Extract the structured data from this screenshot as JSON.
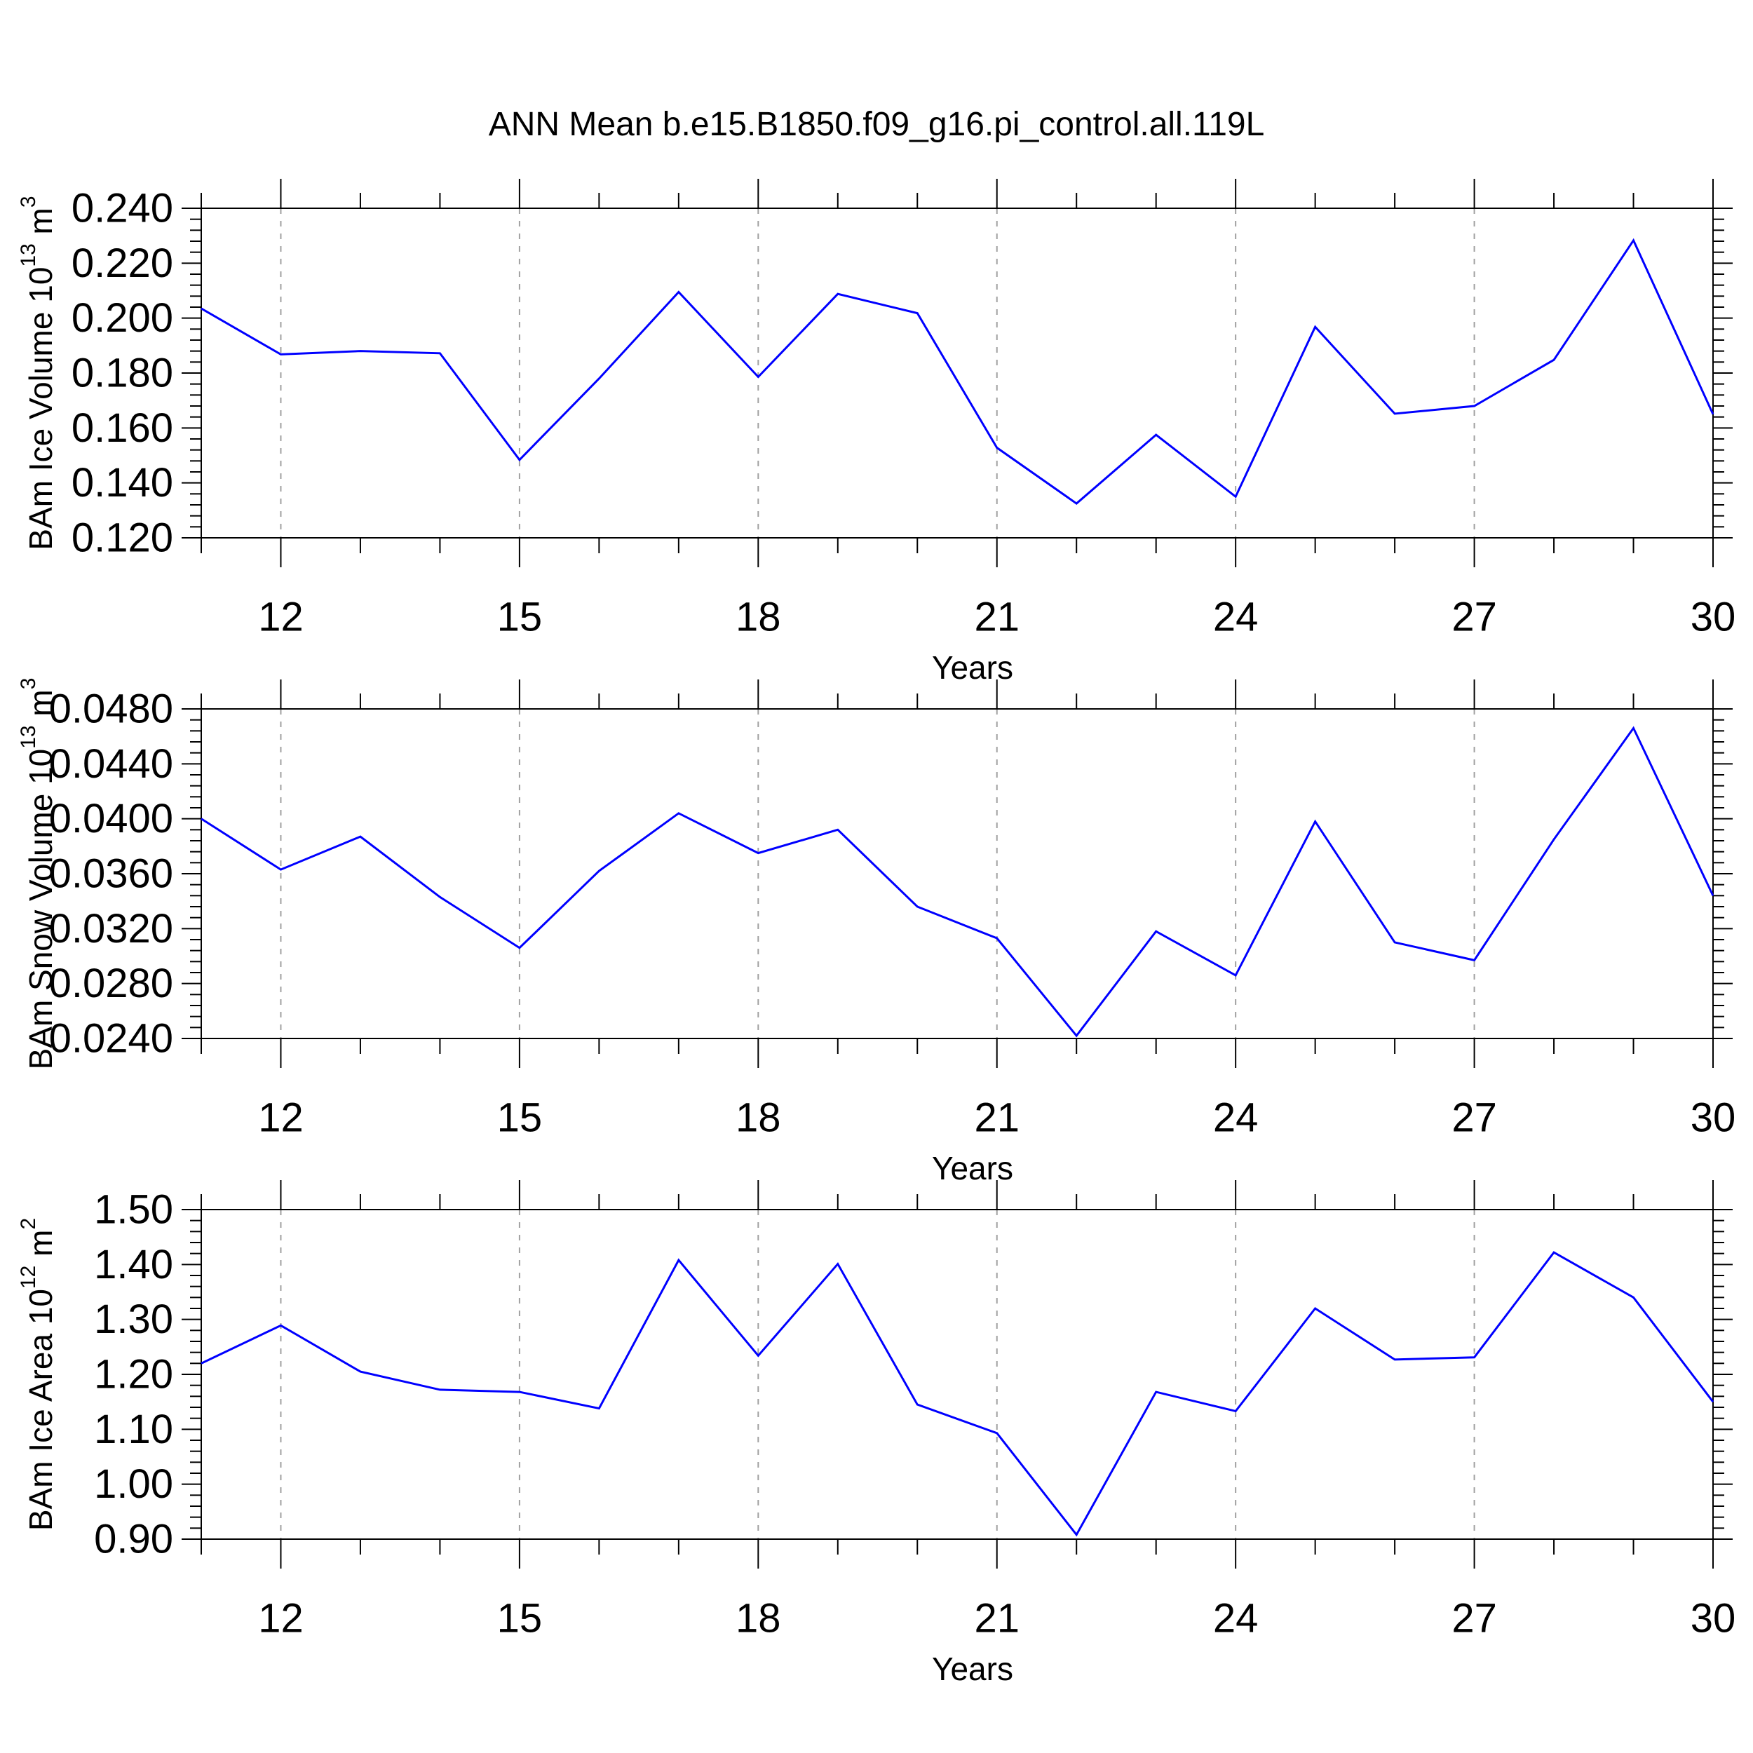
{
  "title": "ANN Mean b.e15.B1850.f09_g16.pi_control.all.119L",
  "colors": {
    "line": "#0000ff",
    "axis": "#000000",
    "grid": "#a0a0a0"
  },
  "chart_data": [
    {
      "type": "line",
      "xlabel": "Years",
      "ylabel": "BAm Ice Volume 10",
      "ylabel_exp": "13",
      "ylabel_unit": " m",
      "ylabel_unit_exp": "3",
      "xlim": [
        11,
        30
      ],
      "ylim": [
        0.12,
        0.24
      ],
      "x_ticks": [
        12,
        15,
        18,
        21,
        24,
        27,
        30
      ],
      "y_ticks": [
        "0.120",
        "0.140",
        "0.160",
        "0.180",
        "0.200",
        "0.220",
        "0.240"
      ],
      "y_tick_values": [
        0.12,
        0.14,
        0.16,
        0.18,
        0.2,
        0.22,
        0.24
      ],
      "grid": "vertical dashed at major x ticks",
      "x": [
        11,
        12,
        13,
        14,
        15,
        16,
        17,
        18,
        19,
        20,
        21,
        22,
        23,
        24,
        25,
        26,
        27,
        28,
        29,
        30
      ],
      "series": [
        {
          "values": [
            0.2035,
            0.1868,
            0.188,
            0.1872,
            0.1484,
            0.178,
            0.2095,
            0.1786,
            0.2088,
            0.2018,
            0.1528,
            0.1325,
            0.1575,
            0.135,
            0.1968,
            0.1652,
            0.168,
            0.1848,
            0.2283,
            0.165
          ]
        }
      ]
    },
    {
      "type": "line",
      "xlabel": "Years",
      "ylabel": "BAm Snow Volume 10",
      "ylabel_exp": "13",
      "ylabel_unit": " m",
      "ylabel_unit_exp": "3",
      "xlim": [
        11,
        30
      ],
      "ylim": [
        0.024,
        0.048
      ],
      "x_ticks": [
        12,
        15,
        18,
        21,
        24,
        27,
        30
      ],
      "y_ticks": [
        "0.0240",
        "0.0280",
        "0.0320",
        "0.0360",
        "0.0400",
        "0.0440",
        "0.0480"
      ],
      "y_tick_values": [
        0.024,
        0.028,
        0.032,
        0.036,
        0.04,
        0.044,
        0.048
      ],
      "grid": "vertical dashed at major x ticks",
      "x": [
        11,
        12,
        13,
        14,
        15,
        16,
        17,
        18,
        19,
        20,
        21,
        22,
        23,
        24,
        25,
        26,
        27,
        28,
        29,
        30
      ],
      "series": [
        {
          "values": [
            0.04,
            0.0363,
            0.0387,
            0.0343,
            0.0306,
            0.0362,
            0.0404,
            0.0375,
            0.0392,
            0.0336,
            0.0313,
            0.0242,
            0.0318,
            0.0286,
            0.0398,
            0.031,
            0.0297,
            0.0385,
            0.0466,
            0.0344
          ]
        }
      ]
    },
    {
      "type": "line",
      "xlabel": "Years",
      "ylabel": "BAm Ice Area 10",
      "ylabel_exp": "12",
      "ylabel_unit": " m",
      "ylabel_unit_exp": "2",
      "xlim": [
        11,
        30
      ],
      "ylim": [
        0.9,
        1.5
      ],
      "x_ticks": [
        12,
        15,
        18,
        21,
        24,
        27,
        30
      ],
      "y_ticks": [
        "0.90",
        "1.00",
        "1.10",
        "1.20",
        "1.30",
        "1.40",
        "1.50"
      ],
      "y_tick_values": [
        0.9,
        1.0,
        1.1,
        1.2,
        1.3,
        1.4,
        1.5
      ],
      "grid": "vertical dashed at major x ticks",
      "x": [
        11,
        12,
        13,
        14,
        15,
        16,
        17,
        18,
        19,
        20,
        21,
        22,
        23,
        24,
        25,
        26,
        27,
        28,
        29,
        30
      ],
      "series": [
        {
          "values": [
            1.22,
            1.289,
            1.205,
            1.172,
            1.168,
            1.138,
            1.408,
            1.234,
            1.401,
            1.145,
            1.093,
            0.908,
            1.168,
            1.133,
            1.32,
            1.227,
            1.231,
            1.422,
            1.34,
            1.15
          ]
        }
      ]
    }
  ]
}
